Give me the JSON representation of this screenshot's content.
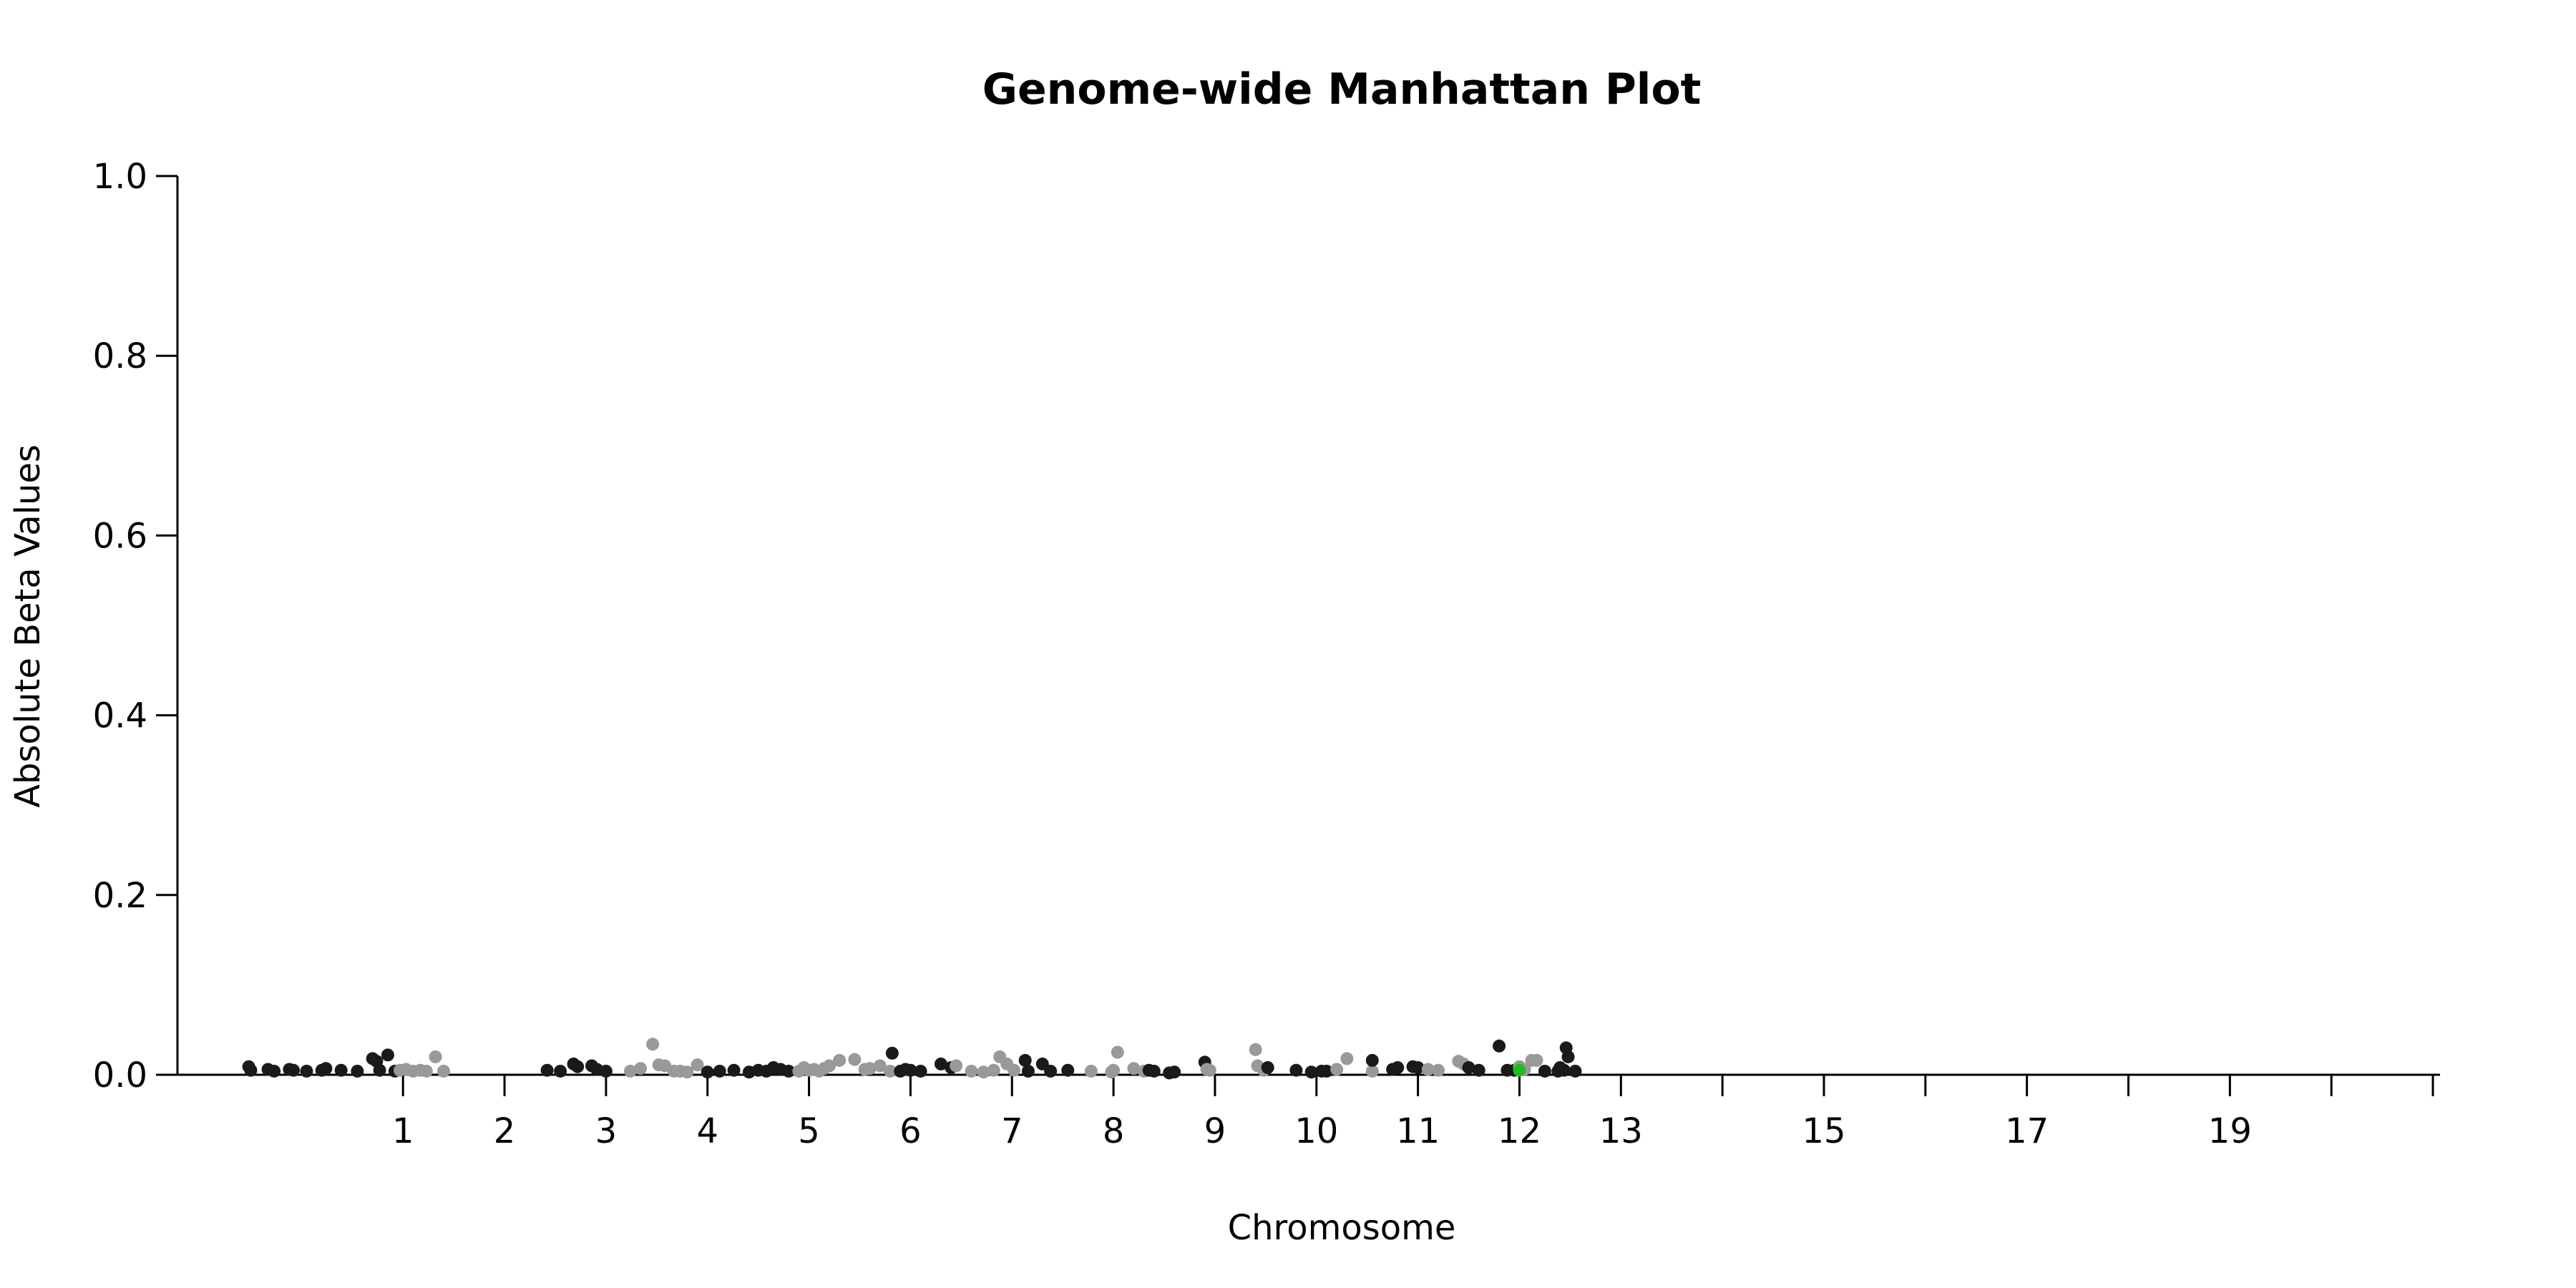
{
  "chart_data": {
    "type": "scatter",
    "title": "Genome-wide Manhattan Plot",
    "xlabel": "Chromosome",
    "ylabel": "Absolute Beta Values",
    "ylim": [
      0,
      1
    ],
    "yticks": [
      "0.0",
      "0.2",
      "0.4",
      "0.6",
      "0.8",
      "1.0"
    ],
    "xlim": [
      -0.75,
      21
    ],
    "grid": false,
    "colors": {
      "odd": "#1a1a1a",
      "even": "#999999",
      "highlight": "#22bb22"
    },
    "xticks": [
      {
        "pos": 1,
        "label": "1"
      },
      {
        "pos": 2,
        "label": "2"
      },
      {
        "pos": 3,
        "label": "3"
      },
      {
        "pos": 4,
        "label": "4"
      },
      {
        "pos": 5,
        "label": "5"
      },
      {
        "pos": 6,
        "label": "6"
      },
      {
        "pos": 7,
        "label": "7"
      },
      {
        "pos": 8,
        "label": "8"
      },
      {
        "pos": 9,
        "label": "9"
      },
      {
        "pos": 10,
        "label": "10"
      },
      {
        "pos": 11,
        "label": "11"
      },
      {
        "pos": 12,
        "label": "12"
      },
      {
        "pos": 13,
        "label": "13"
      },
      {
        "pos": 14,
        "label": ""
      },
      {
        "pos": 15,
        "label": "15"
      },
      {
        "pos": 16,
        "label": ""
      },
      {
        "pos": 17,
        "label": "17"
      },
      {
        "pos": 18,
        "label": ""
      },
      {
        "pos": 19,
        "label": "19"
      },
      {
        "pos": 20,
        "label": ""
      },
      {
        "pos": 21,
        "label": ""
      }
    ],
    "series": [
      {
        "chromosome": "1",
        "color": "odd",
        "x": [
          -0.52,
          -0.5,
          -0.33,
          -0.27,
          -0.12,
          -0.08,
          0.05,
          0.2,
          0.24,
          0.39,
          0.55,
          0.7,
          0.74,
          0.77,
          0.85,
          0.92
        ],
        "y": [
          0.009,
          0.005,
          0.006,
          0.004,
          0.006,
          0.005,
          0.004,
          0.005,
          0.007,
          0.005,
          0.004,
          0.018,
          0.015,
          0.005,
          0.022,
          0.004
        ]
      },
      {
        "chromosome": "2",
        "color": "even",
        "x": [
          0.97,
          1.03,
          1.1,
          1.17,
          1.23,
          1.32,
          1.4
        ],
        "y": [
          0.005,
          0.006,
          0.004,
          0.005,
          0.004,
          0.02,
          0.004
        ]
      },
      {
        "chromosome": "3",
        "color": "odd",
        "x": [
          2.42,
          2.55,
          2.68,
          2.72,
          2.86,
          2.91,
          3.0
        ],
        "y": [
          0.005,
          0.004,
          0.012,
          0.009,
          0.01,
          0.006,
          0.004
        ]
      },
      {
        "chromosome": "4",
        "color": "even",
        "x": [
          3.24,
          3.34,
          3.46,
          3.52,
          3.58,
          3.67,
          3.73,
          3.8,
          3.9
        ],
        "y": [
          0.004,
          0.007,
          0.034,
          0.011,
          0.01,
          0.004,
          0.004,
          0.003,
          0.011
        ]
      },
      {
        "chromosome": "5",
        "color": "odd",
        "x": [
          4.0,
          4.12,
          4.26,
          4.41,
          4.5,
          4.58,
          4.65,
          4.72,
          4.8
        ],
        "y": [
          0.003,
          0.004,
          0.005,
          0.003,
          0.005,
          0.004,
          0.008,
          0.006,
          0.004
        ]
      },
      {
        "chromosome": "6",
        "color": "even",
        "x": [
          4.9,
          4.95,
          5.0,
          5.05,
          5.1,
          5.15,
          5.2,
          5.3,
          5.45,
          5.55,
          5.6,
          5.7,
          5.8
        ],
        "y": [
          0.004,
          0.008,
          0.005,
          0.006,
          0.004,
          0.007,
          0.01,
          0.016,
          0.017,
          0.006,
          0.007,
          0.01,
          0.004
        ]
      },
      {
        "chromosome": "7",
        "color": "odd",
        "x": [
          5.82,
          5.9,
          5.95,
          6.0,
          6.1,
          6.3,
          6.4
        ],
        "y": [
          0.024,
          0.004,
          0.006,
          0.005,
          0.004,
          0.012,
          0.008
        ]
      },
      {
        "chromosome": "8",
        "color": "even",
        "x": [
          6.45,
          6.6,
          6.72,
          6.82,
          6.88,
          6.95,
          7.02
        ],
        "y": [
          0.01,
          0.004,
          0.003,
          0.005,
          0.02,
          0.012,
          0.005
        ]
      },
      {
        "chromosome": "9",
        "color": "odd",
        "x": [
          7.13,
          7.16,
          7.3,
          7.38,
          7.55
        ],
        "y": [
          0.016,
          0.004,
          0.012,
          0.004,
          0.005
        ]
      },
      {
        "chromosome": "10",
        "color": "even",
        "x": [
          7.78,
          7.98,
          8.0,
          8.04,
          8.2,
          8.3
        ],
        "y": [
          0.004,
          0.003,
          0.005,
          0.025,
          0.007,
          0.004
        ]
      },
      {
        "chromosome": "11",
        "color": "odd",
        "x": [
          8.35,
          8.4,
          8.55,
          8.6,
          8.9
        ],
        "y": [
          0.005,
          0.004,
          0.002,
          0.003,
          0.014
        ]
      },
      {
        "chromosome": "12",
        "color": "even",
        "x": [
          8.92,
          8.95,
          9.4,
          9.42,
          9.48
        ],
        "y": [
          0.006,
          0.005,
          0.028,
          0.01,
          0.005
        ]
      },
      {
        "chromosome": "13",
        "color": "odd",
        "x": [
          9.52,
          9.8,
          9.95,
          10.05,
          10.1
        ],
        "y": [
          0.008,
          0.005,
          0.003,
          0.004,
          0.004
        ]
      },
      {
        "chromosome": "14",
        "color": "even",
        "x": [
          10.2,
          10.3,
          10.55
        ],
        "y": [
          0.006,
          0.018,
          0.004
        ]
      },
      {
        "chromosome": "15",
        "color": "odd",
        "x": [
          10.55,
          10.75,
          10.8,
          10.95,
          11.0
        ],
        "y": [
          0.016,
          0.006,
          0.008,
          0.009,
          0.008
        ]
      },
      {
        "chromosome": "16",
        "color": "even",
        "x": [
          11.1,
          11.2,
          11.4,
          11.45
        ],
        "y": [
          0.006,
          0.005,
          0.015,
          0.012
        ]
      },
      {
        "chromosome": "17",
        "color": "odd",
        "x": [
          11.5,
          11.6,
          11.8,
          11.88,
          11.95
        ],
        "y": [
          0.008,
          0.005,
          0.032,
          0.005,
          0.005
        ]
      },
      {
        "chromosome": "18",
        "color": "even",
        "x": [
          12.0,
          12.05,
          12.12,
          12.17
        ],
        "y": [
          0.009,
          0.006,
          0.016,
          0.016
        ]
      },
      {
        "chromosome": "19",
        "color": "odd",
        "x": [
          12.25,
          12.38,
          12.4,
          12.44,
          12.46,
          12.48,
          12.55
        ],
        "y": [
          0.004,
          0.004,
          0.008,
          0.005,
          0.03,
          0.02,
          0.004
        ]
      }
    ],
    "highlight": [
      {
        "x": 12.0,
        "y": 0.005
      }
    ]
  }
}
